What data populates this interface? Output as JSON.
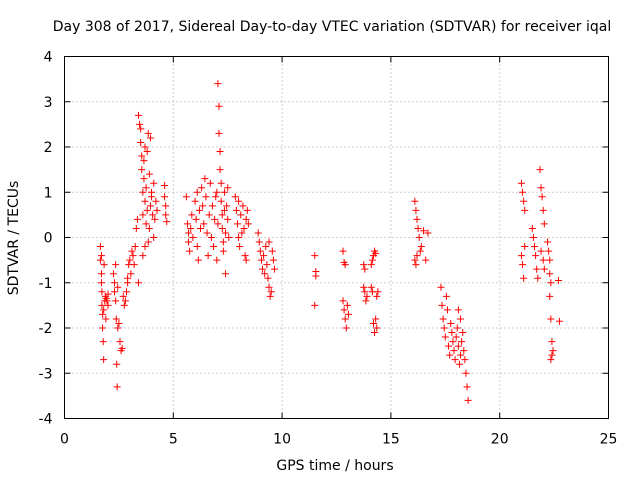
{
  "chart_data": {
    "type": "scatter",
    "title": "Day 308 of 2017, Sidereal Day-to-day VTEC variation (SDTVAR) for receiver iqal",
    "xlabel": "GPS time / hours",
    "ylabel": "SDTVAR / TECUs",
    "xlim": [
      0,
      25
    ],
    "ylim": [
      -4,
      4
    ],
    "xticks": [
      "0",
      "5",
      "10",
      "15",
      "20",
      "25"
    ],
    "yticks": [
      "-4",
      "-3",
      "-2",
      "-1",
      "0",
      "1",
      "2",
      "3",
      "4"
    ],
    "grid": true,
    "marker": "plus",
    "color": "#ff0000",
    "series": [
      {
        "name": "SDTVAR",
        "points": [
          [
            1.65,
            -0.2
          ],
          [
            1.65,
            -0.5
          ],
          [
            1.7,
            -0.4
          ],
          [
            1.7,
            -0.8
          ],
          [
            1.7,
            -1.0
          ],
          [
            1.72,
            -1.2
          ],
          [
            1.72,
            -1.5
          ],
          [
            1.75,
            -1.7
          ],
          [
            1.75,
            -2.0
          ],
          [
            1.78,
            -2.3
          ],
          [
            1.8,
            -2.7
          ],
          [
            1.8,
            -1.6
          ],
          [
            1.82,
            -0.6
          ],
          [
            1.85,
            -1.4
          ],
          [
            1.88,
            -1.3
          ],
          [
            1.9,
            -1.8
          ],
          [
            1.92,
            -1.35
          ],
          [
            1.95,
            -1.4
          ],
          [
            2.0,
            -1.25
          ],
          [
            2.0,
            -1.5
          ],
          [
            2.25,
            -0.8
          ],
          [
            2.3,
            -1.0
          ],
          [
            2.3,
            -1.2
          ],
          [
            2.35,
            -1.4
          ],
          [
            2.35,
            -0.6
          ],
          [
            2.38,
            -1.8
          ],
          [
            2.4,
            -2.8
          ],
          [
            2.42,
            -3.3
          ],
          [
            2.45,
            -2.0
          ],
          [
            2.5,
            -1.9
          ],
          [
            2.55,
            -2.3
          ],
          [
            2.6,
            -2.5
          ],
          [
            2.65,
            -2.45
          ],
          [
            2.45,
            -1.1
          ],
          [
            2.7,
            -1.3
          ],
          [
            2.75,
            -1.5
          ],
          [
            2.8,
            -1.4
          ],
          [
            2.85,
            -1.2
          ],
          [
            2.9,
            -1.0
          ],
          [
            2.9,
            -0.9
          ],
          [
            2.95,
            -0.6
          ],
          [
            3.0,
            -0.5
          ],
          [
            3.05,
            -0.8
          ],
          [
            3.1,
            -0.3
          ],
          [
            3.15,
            -0.4
          ],
          [
            3.2,
            -0.6
          ],
          [
            3.25,
            -0.2
          ],
          [
            3.3,
            0.2
          ],
          [
            3.35,
            0.4
          ],
          [
            3.4,
            -1.0
          ],
          [
            3.4,
            2.7
          ],
          [
            3.45,
            2.5
          ],
          [
            3.5,
            2.4
          ],
          [
            3.5,
            2.1
          ],
          [
            3.55,
            1.8
          ],
          [
            3.55,
            1.5
          ],
          [
            3.6,
            1.0
          ],
          [
            3.6,
            0.5
          ],
          [
            3.65,
            1.3
          ],
          [
            3.65,
            1.7
          ],
          [
            3.7,
            2.0
          ],
          [
            3.7,
            0.8
          ],
          [
            3.75,
            1.1
          ],
          [
            3.75,
            0.3
          ],
          [
            3.8,
            1.9
          ],
          [
            3.8,
            0.6
          ],
          [
            3.85,
            2.3
          ],
          [
            3.85,
            -0.1
          ],
          [
            3.9,
            1.4
          ],
          [
            3.9,
            0.2
          ],
          [
            3.95,
            2.2
          ],
          [
            3.95,
            0.7
          ],
          [
            4.0,
            1.0
          ],
          [
            4.0,
            0.9
          ],
          [
            4.05,
            0.5
          ],
          [
            4.1,
            1.2
          ],
          [
            4.1,
            0.0
          ],
          [
            4.15,
            0.4
          ],
          [
            4.2,
            0.8
          ],
          [
            4.25,
            0.6
          ],
          [
            3.6,
            -0.4
          ],
          [
            3.7,
            -0.2
          ],
          [
            4.6,
            1.15
          ],
          [
            4.6,
            0.9
          ],
          [
            4.65,
            0.7
          ],
          [
            4.65,
            0.5
          ],
          [
            4.7,
            0.35
          ],
          [
            5.6,
            0.9
          ],
          [
            5.65,
            0.3
          ],
          [
            5.7,
            0.1
          ],
          [
            5.7,
            -0.1
          ],
          [
            5.75,
            -0.3
          ],
          [
            5.8,
            0.2
          ],
          [
            5.85,
            0.5
          ],
          [
            5.9,
            0.0
          ],
          [
            6.0,
            0.8
          ],
          [
            6.05,
            0.4
          ],
          [
            6.1,
            1.0
          ],
          [
            6.1,
            -0.2
          ],
          [
            6.15,
            -0.5
          ],
          [
            6.2,
            0.6
          ],
          [
            6.25,
            0.2
          ],
          [
            6.3,
            1.1
          ],
          [
            6.35,
            0.7
          ],
          [
            6.4,
            0.3
          ],
          [
            6.45,
            1.3
          ],
          [
            6.5,
            0.9
          ],
          [
            6.55,
            0.1
          ],
          [
            6.6,
            -0.4
          ],
          [
            6.65,
            0.5
          ],
          [
            6.7,
            1.2
          ],
          [
            6.75,
            0.0
          ],
          [
            6.8,
            0.7
          ],
          [
            6.85,
            -0.2
          ],
          [
            6.9,
            0.4
          ],
          [
            6.95,
            0.9
          ],
          [
            7.0,
            1.0
          ],
          [
            7.0,
            -0.5
          ],
          [
            7.05,
            0.3
          ],
          [
            7.05,
            3.4
          ],
          [
            7.1,
            2.9
          ],
          [
            7.1,
            2.3
          ],
          [
            7.15,
            1.9
          ],
          [
            7.15,
            1.5
          ],
          [
            7.2,
            1.2
          ],
          [
            7.2,
            0.8
          ],
          [
            7.25,
            0.5
          ],
          [
            7.25,
            0.2
          ],
          [
            7.3,
            -0.1
          ],
          [
            7.3,
            -0.3
          ],
          [
            7.35,
            0.6
          ],
          [
            7.35,
            1.0
          ],
          [
            7.4,
            0.1
          ],
          [
            7.4,
            -0.8
          ],
          [
            7.45,
            0.7
          ],
          [
            7.5,
            1.1
          ],
          [
            7.5,
            0.4
          ],
          [
            7.55,
            0.0
          ],
          [
            7.85,
            0.9
          ],
          [
            7.9,
            0.6
          ],
          [
            7.95,
            0.3
          ],
          [
            8.0,
            0.0
          ],
          [
            8.0,
            0.8
          ],
          [
            8.05,
            -0.2
          ],
          [
            8.1,
            0.5
          ],
          [
            8.15,
            0.1
          ],
          [
            8.2,
            0.7
          ],
          [
            8.25,
            0.2
          ],
          [
            8.3,
            -0.4
          ],
          [
            8.35,
            0.4
          ],
          [
            8.4,
            0.6
          ],
          [
            8.45,
            0.3
          ],
          [
            8.35,
            -0.5
          ],
          [
            8.9,
            0.1
          ],
          [
            8.95,
            -0.1
          ],
          [
            9.0,
            -0.3
          ],
          [
            9.05,
            -0.5
          ],
          [
            9.1,
            -0.7
          ],
          [
            9.15,
            -0.4
          ],
          [
            9.2,
            -0.8
          ],
          [
            9.25,
            -0.2
          ],
          [
            9.3,
            -0.6
          ],
          [
            9.35,
            -0.9
          ],
          [
            9.4,
            -1.1
          ],
          [
            9.45,
            -1.3
          ],
          [
            9.5,
            -1.2
          ],
          [
            9.55,
            -0.3
          ],
          [
            9.6,
            -0.5
          ],
          [
            9.65,
            -0.7
          ],
          [
            9.4,
            -0.1
          ],
          [
            11.5,
            -0.4
          ],
          [
            11.55,
            -0.75
          ],
          [
            11.55,
            -0.85
          ],
          [
            11.5,
            -1.5
          ],
          [
            12.8,
            -0.3
          ],
          [
            12.85,
            -0.55
          ],
          [
            12.9,
            -0.6
          ],
          [
            12.8,
            -1.4
          ],
          [
            12.85,
            -1.6
          ],
          [
            12.9,
            -1.8
          ],
          [
            12.95,
            -2.0
          ],
          [
            13.0,
            -1.5
          ],
          [
            13.05,
            -1.7
          ],
          [
            13.75,
            -0.6
          ],
          [
            13.8,
            -0.7
          ],
          [
            13.75,
            -1.1
          ],
          [
            13.8,
            -1.2
          ],
          [
            13.85,
            -1.4
          ],
          [
            13.9,
            -1.3
          ],
          [
            14.1,
            -0.6
          ],
          [
            14.15,
            -0.5
          ],
          [
            14.2,
            -0.4
          ],
          [
            14.25,
            -0.3
          ],
          [
            14.3,
            -0.35
          ],
          [
            14.1,
            -1.1
          ],
          [
            14.15,
            -1.2
          ],
          [
            14.2,
            -1.9
          ],
          [
            14.25,
            -2.1
          ],
          [
            14.3,
            -1.8
          ],
          [
            14.35,
            -2.0
          ],
          [
            14.35,
            -1.3
          ],
          [
            14.4,
            -1.2
          ],
          [
            16.1,
            0.8
          ],
          [
            16.15,
            0.6
          ],
          [
            16.2,
            0.4
          ],
          [
            16.25,
            0.2
          ],
          [
            16.3,
            0.0
          ],
          [
            16.1,
            -0.5
          ],
          [
            16.15,
            -0.6
          ],
          [
            16.2,
            -0.4
          ],
          [
            16.35,
            -0.3
          ],
          [
            16.4,
            -0.2
          ],
          [
            16.5,
            0.15
          ],
          [
            16.6,
            -0.5
          ],
          [
            16.7,
            0.1
          ],
          [
            17.3,
            -1.1
          ],
          [
            17.35,
            -1.5
          ],
          [
            17.4,
            -1.8
          ],
          [
            17.45,
            -2.0
          ],
          [
            17.5,
            -2.2
          ],
          [
            17.55,
            -1.3
          ],
          [
            17.6,
            -1.6
          ],
          [
            17.65,
            -2.4
          ],
          [
            17.7,
            -2.6
          ],
          [
            17.75,
            -1.9
          ],
          [
            17.8,
            -2.1
          ],
          [
            17.85,
            -2.3
          ],
          [
            17.9,
            -2.5
          ],
          [
            17.95,
            -2.7
          ],
          [
            18.0,
            -2.2
          ],
          [
            18.05,
            -2.0
          ],
          [
            18.1,
            -2.4
          ],
          [
            18.15,
            -2.8
          ],
          [
            18.2,
            -2.6
          ],
          [
            18.25,
            -2.3
          ],
          [
            18.3,
            -2.1
          ],
          [
            18.35,
            -2.5
          ],
          [
            18.4,
            -2.7
          ],
          [
            18.45,
            -3.0
          ],
          [
            18.5,
            -3.3
          ],
          [
            18.55,
            -3.6
          ],
          [
            18.1,
            -1.6
          ],
          [
            18.2,
            -1.8
          ],
          [
            21.0,
            1.2
          ],
          [
            21.05,
            1.0
          ],
          [
            21.1,
            0.8
          ],
          [
            21.15,
            0.6
          ],
          [
            21.0,
            -0.4
          ],
          [
            21.05,
            -0.6
          ],
          [
            21.1,
            -0.9
          ],
          [
            21.15,
            -0.2
          ],
          [
            21.5,
            0.2
          ],
          [
            21.55,
            0.0
          ],
          [
            21.6,
            -0.2
          ],
          [
            21.65,
            -0.4
          ],
          [
            21.7,
            -0.7
          ],
          [
            21.75,
            -0.9
          ],
          [
            21.85,
            1.5
          ],
          [
            21.9,
            1.1
          ],
          [
            21.95,
            0.9
          ],
          [
            22.0,
            0.6
          ],
          [
            22.05,
            0.3
          ],
          [
            21.9,
            -0.3
          ],
          [
            22.0,
            -0.5
          ],
          [
            22.05,
            -0.7
          ],
          [
            22.2,
            -0.1
          ],
          [
            22.25,
            -0.3
          ],
          [
            22.3,
            -0.5
          ],
          [
            22.3,
            -0.8
          ],
          [
            22.35,
            -1.0
          ],
          [
            22.3,
            -1.3
          ],
          [
            22.35,
            -1.8
          ],
          [
            22.4,
            -2.3
          ],
          [
            22.45,
            -2.5
          ],
          [
            22.4,
            -2.6
          ],
          [
            22.35,
            -2.7
          ],
          [
            22.7,
            -0.95
          ],
          [
            22.75,
            -1.85
          ]
        ]
      }
    ]
  }
}
